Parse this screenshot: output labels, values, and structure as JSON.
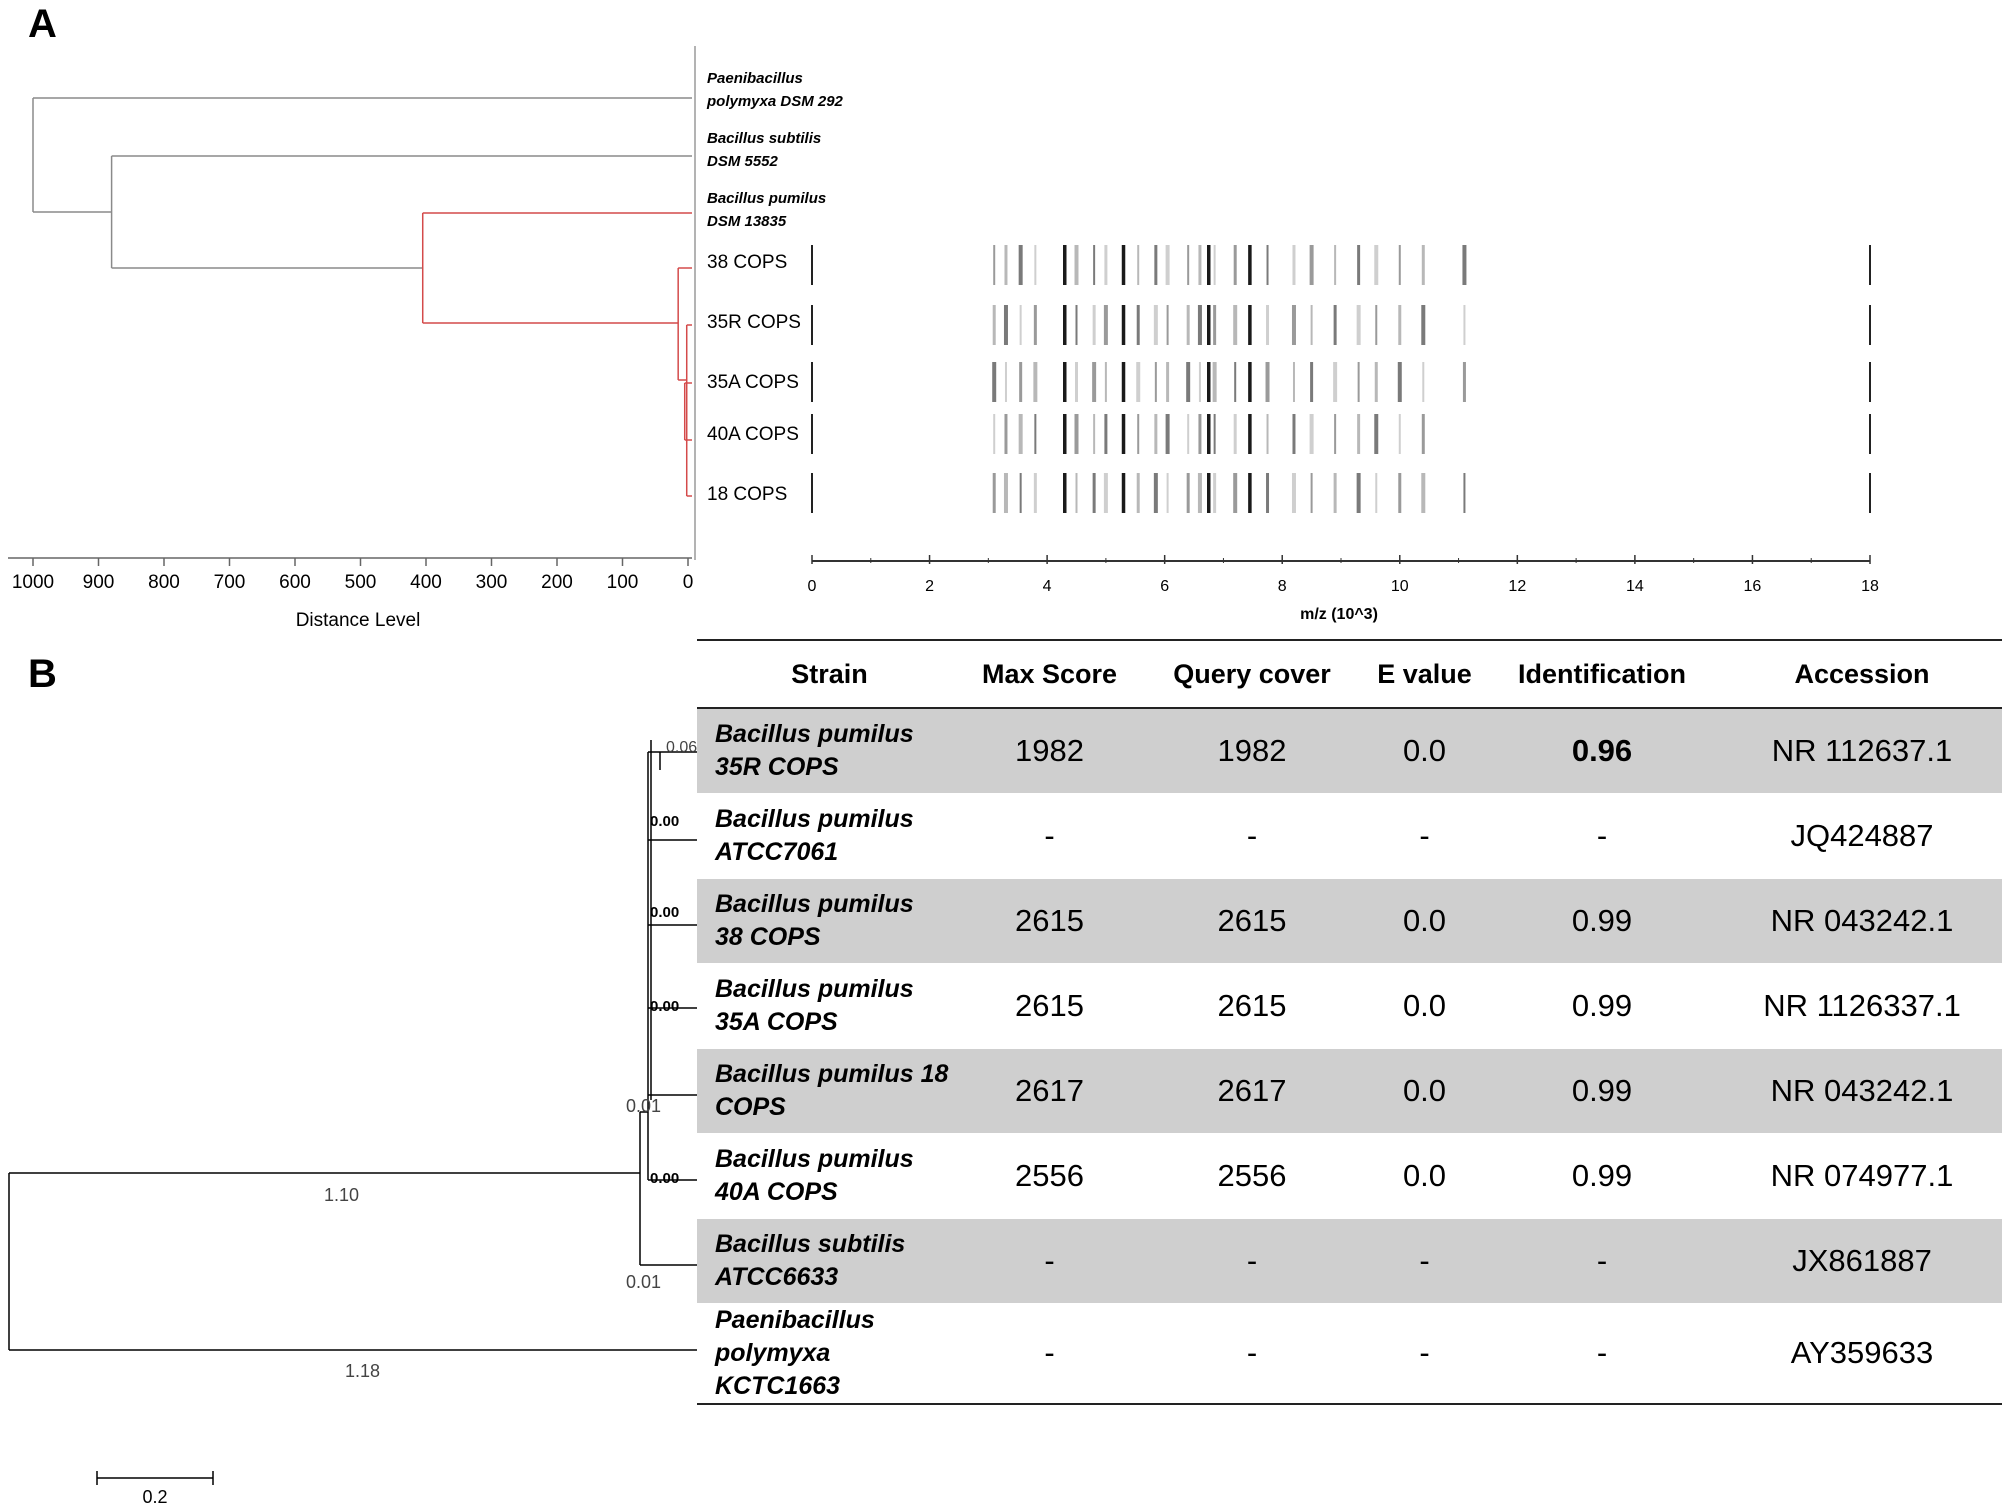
{
  "panel_a": {
    "label": "A",
    "dendrogram": {
      "leaves": [
        {
          "line1": "Paenibacillus",
          "line2": "polymyxa DSM 292"
        },
        {
          "line1": "Bacillus subtilis",
          "line2": "DSM 5552"
        },
        {
          "line1": "Bacillus pumilus",
          "line2": "DSM 13835"
        },
        {
          "line1": "38 COPS",
          "line2": ""
        },
        {
          "line1": "35R COPS",
          "line2": ""
        },
        {
          "line1": "35A COPS",
          "line2": ""
        },
        {
          "line1": "40A COPS",
          "line2": ""
        },
        {
          "line1": "18 COPS",
          "line2": ""
        }
      ],
      "axis_ticks": [
        "1000",
        "900",
        "800",
        "700",
        "600",
        "500",
        "400",
        "300",
        "200",
        "100",
        "0"
      ],
      "axis_label": "Distance Level",
      "merge_distances": [
        1000,
        880,
        405,
        15,
        5
      ],
      "colors": {
        "outer_branches": "#8a8a8a",
        "pumilus_clade": "#d44a4a"
      }
    },
    "spectra": {
      "axis_ticks": [
        "0",
        "2",
        "4",
        "6",
        "8",
        "10",
        "12",
        "14",
        "16",
        "18"
      ],
      "xlim": [
        0,
        18
      ],
      "axis_label": "m/z (10^3)",
      "peaks_kda": [
        3.1,
        3.3,
        3.55,
        3.8,
        4.3,
        4.5,
        4.8,
        5.0,
        5.3,
        5.55,
        5.85,
        6.05,
        6.4,
        6.6,
        6.75,
        6.85,
        7.2,
        7.45,
        7.75,
        8.2,
        8.5,
        8.9,
        9.3,
        9.6,
        10.0,
        10.4,
        11.1
      ],
      "dark_peaks_kda": [
        4.3,
        5.3,
        6.75,
        7.45
      ]
    }
  },
  "panel_b": {
    "label": "B",
    "tree": {
      "branch_labels": [
        "0.06",
        "0.00",
        "0.00",
        "0.00",
        "0.01",
        "0.00",
        "1.10",
        "0.01",
        "1.18"
      ],
      "scale_bar_label": "0.2",
      "scale_bar_value": 0.2
    },
    "table": {
      "headers": [
        "Strain",
        "Max Score",
        "Query cover",
        "E value",
        "Identification",
        "Accession"
      ],
      "rows": [
        {
          "strain_line1": "Bacillus pumilus",
          "strain_line2": "35R COPS",
          "max_score": "1982",
          "query_cover": "1982",
          "e_value": "0.0",
          "identification": "0.96",
          "accession": "NR 112637.1"
        },
        {
          "strain_line1": "Bacillus pumilus",
          "strain_line2": "ATCC7061",
          "max_score": "-",
          "query_cover": "-",
          "e_value": "-",
          "identification": "-",
          "accession": "JQ424887"
        },
        {
          "strain_line1": "Bacillus pumilus",
          "strain_line2": "38 COPS",
          "max_score": "2615",
          "query_cover": "2615",
          "e_value": "0.0",
          "identification": "0.99",
          "accession": "NR 043242.1"
        },
        {
          "strain_line1": "Bacillus pumilus",
          "strain_line2": "35A COPS",
          "max_score": "2615",
          "query_cover": "2615",
          "e_value": "0.0",
          "identification": "0.99",
          "accession": "NR 1126337.1"
        },
        {
          "strain_line1": "Bacillus pumilus 18",
          "strain_line2": "COPS",
          "max_score": "2617",
          "query_cover": "2617",
          "e_value": "0.0",
          "identification": "0.99",
          "accession": "NR 043242.1"
        },
        {
          "strain_line1": "Bacillus pumilus",
          "strain_line2": "40A COPS",
          "max_score": "2556",
          "query_cover": "2556",
          "e_value": "0.0",
          "identification": "0.99",
          "accession": "NR 074977.1"
        },
        {
          "strain_line1": "Bacillus subtilis",
          "strain_line2": "ATCC6633",
          "max_score": "-",
          "query_cover": "-",
          "e_value": "-",
          "identification": "-",
          "accession": "JX861887"
        },
        {
          "strain_line1": "Paenibacillus",
          "strain_line2": "polymyxa KCTC1663",
          "max_score": "-",
          "query_cover": "-",
          "e_value": "-",
          "identification": "-",
          "accession": "AY359633"
        }
      ]
    }
  }
}
